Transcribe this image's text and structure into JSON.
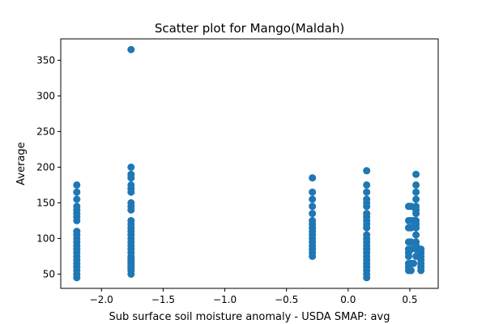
{
  "chart_data": {
    "type": "scatter",
    "title": "Scatter plot for Mango(Maldah)",
    "xlabel": "Sub surface soil moisture anomaly - USDA SMAP: avg",
    "ylabel": "Average",
    "xlim": [
      -2.33,
      0.73
    ],
    "ylim": [
      30,
      380
    ],
    "xticks": [
      -2.0,
      -1.5,
      -1.0,
      -0.5,
      0.0,
      0.5
    ],
    "xtick_labels": [
      "−2.0",
      "−1.5",
      "−1.0",
      "−0.5",
      "0.0",
      "0.5"
    ],
    "yticks": [
      50,
      100,
      150,
      200,
      250,
      300,
      350
    ],
    "ytick_labels": [
      "50",
      "100",
      "150",
      "200",
      "250",
      "300",
      "350"
    ],
    "grid": false,
    "color": "#1f77b4",
    "points": [
      {
        "x": -2.2,
        "y": 45
      },
      {
        "x": -2.2,
        "y": 50
      },
      {
        "x": -2.2,
        "y": 55
      },
      {
        "x": -2.2,
        "y": 60
      },
      {
        "x": -2.2,
        "y": 65
      },
      {
        "x": -2.2,
        "y": 70
      },
      {
        "x": -2.2,
        "y": 75
      },
      {
        "x": -2.2,
        "y": 80
      },
      {
        "x": -2.2,
        "y": 85
      },
      {
        "x": -2.2,
        "y": 90
      },
      {
        "x": -2.2,
        "y": 95
      },
      {
        "x": -2.2,
        "y": 100
      },
      {
        "x": -2.2,
        "y": 105
      },
      {
        "x": -2.2,
        "y": 110
      },
      {
        "x": -2.2,
        "y": 125
      },
      {
        "x": -2.2,
        "y": 130
      },
      {
        "x": -2.2,
        "y": 135
      },
      {
        "x": -2.2,
        "y": 140
      },
      {
        "x": -2.2,
        "y": 145
      },
      {
        "x": -2.2,
        "y": 155
      },
      {
        "x": -2.2,
        "y": 165
      },
      {
        "x": -2.2,
        "y": 175
      },
      {
        "x": -1.76,
        "y": 50
      },
      {
        "x": -1.76,
        "y": 55
      },
      {
        "x": -1.76,
        "y": 58
      },
      {
        "x": -1.76,
        "y": 60
      },
      {
        "x": -1.76,
        "y": 63
      },
      {
        "x": -1.76,
        "y": 65
      },
      {
        "x": -1.76,
        "y": 68
      },
      {
        "x": -1.76,
        "y": 70
      },
      {
        "x": -1.76,
        "y": 73
      },
      {
        "x": -1.76,
        "y": 75
      },
      {
        "x": -1.76,
        "y": 80
      },
      {
        "x": -1.76,
        "y": 85
      },
      {
        "x": -1.76,
        "y": 90
      },
      {
        "x": -1.76,
        "y": 95
      },
      {
        "x": -1.76,
        "y": 100
      },
      {
        "x": -1.76,
        "y": 105
      },
      {
        "x": -1.76,
        "y": 110
      },
      {
        "x": -1.76,
        "y": 115
      },
      {
        "x": -1.76,
        "y": 120
      },
      {
        "x": -1.76,
        "y": 125
      },
      {
        "x": -1.76,
        "y": 140
      },
      {
        "x": -1.76,
        "y": 145
      },
      {
        "x": -1.76,
        "y": 150
      },
      {
        "x": -1.76,
        "y": 165
      },
      {
        "x": -1.76,
        "y": 170
      },
      {
        "x": -1.76,
        "y": 175
      },
      {
        "x": -1.76,
        "y": 185
      },
      {
        "x": -1.76,
        "y": 190
      },
      {
        "x": -1.76,
        "y": 200
      },
      {
        "x": -1.76,
        "y": 365
      },
      {
        "x": -0.29,
        "y": 75
      },
      {
        "x": -0.29,
        "y": 80
      },
      {
        "x": -0.29,
        "y": 85
      },
      {
        "x": -0.29,
        "y": 90
      },
      {
        "x": -0.29,
        "y": 95
      },
      {
        "x": -0.29,
        "y": 100
      },
      {
        "x": -0.29,
        "y": 105
      },
      {
        "x": -0.29,
        "y": 110
      },
      {
        "x": -0.29,
        "y": 115
      },
      {
        "x": -0.29,
        "y": 120
      },
      {
        "x": -0.29,
        "y": 125
      },
      {
        "x": -0.29,
        "y": 135
      },
      {
        "x": -0.29,
        "y": 145
      },
      {
        "x": -0.29,
        "y": 155
      },
      {
        "x": -0.29,
        "y": 165
      },
      {
        "x": -0.29,
        "y": 185
      },
      {
        "x": 0.15,
        "y": 45
      },
      {
        "x": 0.15,
        "y": 50
      },
      {
        "x": 0.15,
        "y": 55
      },
      {
        "x": 0.15,
        "y": 60
      },
      {
        "x": 0.15,
        "y": 65
      },
      {
        "x": 0.15,
        "y": 70
      },
      {
        "x": 0.15,
        "y": 75
      },
      {
        "x": 0.15,
        "y": 80
      },
      {
        "x": 0.15,
        "y": 85
      },
      {
        "x": 0.15,
        "y": 90
      },
      {
        "x": 0.15,
        "y": 95
      },
      {
        "x": 0.15,
        "y": 100
      },
      {
        "x": 0.15,
        "y": 105
      },
      {
        "x": 0.15,
        "y": 115
      },
      {
        "x": 0.15,
        "y": 120
      },
      {
        "x": 0.15,
        "y": 125
      },
      {
        "x": 0.15,
        "y": 130
      },
      {
        "x": 0.15,
        "y": 135
      },
      {
        "x": 0.15,
        "y": 145
      },
      {
        "x": 0.15,
        "y": 150
      },
      {
        "x": 0.15,
        "y": 155
      },
      {
        "x": 0.15,
        "y": 165
      },
      {
        "x": 0.15,
        "y": 175
      },
      {
        "x": 0.15,
        "y": 195
      },
      {
        "x": 0.49,
        "y": 55
      },
      {
        "x": 0.49,
        "y": 60
      },
      {
        "x": 0.49,
        "y": 65
      },
      {
        "x": 0.49,
        "y": 75
      },
      {
        "x": 0.49,
        "y": 80
      },
      {
        "x": 0.49,
        "y": 85
      },
      {
        "x": 0.49,
        "y": 95
      },
      {
        "x": 0.49,
        "y": 115
      },
      {
        "x": 0.49,
        "y": 125
      },
      {
        "x": 0.49,
        "y": 145
      },
      {
        "x": 0.51,
        "y": 55
      },
      {
        "x": 0.51,
        "y": 65
      },
      {
        "x": 0.51,
        "y": 85
      },
      {
        "x": 0.51,
        "y": 95
      },
      {
        "x": 0.51,
        "y": 115
      },
      {
        "x": 0.51,
        "y": 125
      },
      {
        "x": 0.51,
        "y": 145
      },
      {
        "x": 0.55,
        "y": 75
      },
      {
        "x": 0.55,
        "y": 85
      },
      {
        "x": 0.55,
        "y": 90
      },
      {
        "x": 0.55,
        "y": 95
      },
      {
        "x": 0.55,
        "y": 105
      },
      {
        "x": 0.55,
        "y": 115
      },
      {
        "x": 0.55,
        "y": 120
      },
      {
        "x": 0.55,
        "y": 125
      },
      {
        "x": 0.55,
        "y": 135
      },
      {
        "x": 0.55,
        "y": 140
      },
      {
        "x": 0.55,
        "y": 145
      },
      {
        "x": 0.55,
        "y": 155
      },
      {
        "x": 0.55,
        "y": 165
      },
      {
        "x": 0.55,
        "y": 175
      },
      {
        "x": 0.55,
        "y": 190
      },
      {
        "x": 0.53,
        "y": 65
      },
      {
        "x": 0.53,
        "y": 125
      },
      {
        "x": 0.59,
        "y": 55
      },
      {
        "x": 0.59,
        "y": 60
      },
      {
        "x": 0.59,
        "y": 65
      },
      {
        "x": 0.59,
        "y": 70
      },
      {
        "x": 0.59,
        "y": 75
      },
      {
        "x": 0.59,
        "y": 80
      },
      {
        "x": 0.59,
        "y": 85
      }
    ]
  }
}
